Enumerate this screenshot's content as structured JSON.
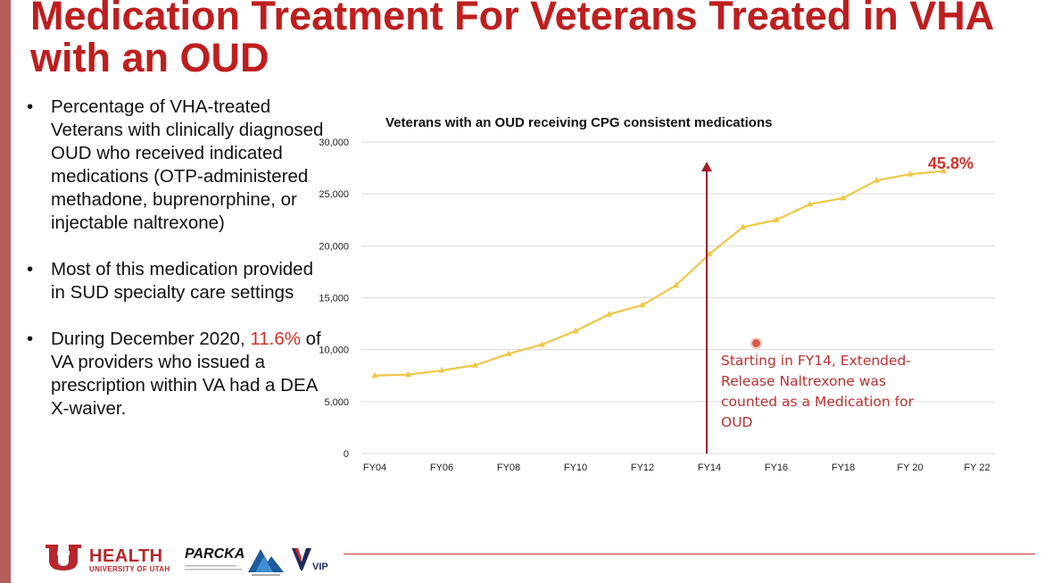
{
  "slide": {
    "title": "Medication Treatment For Veterans Treated in VHA with an OUD",
    "bullets": [
      {
        "text": "Percentage of VHA-treated Veterans with clinically diagnosed OUD who received indicated medications (OTP-administered methadone, buprenorphine, or injectable naltrexone)"
      },
      {
        "text": "Most of this medication provided in SUD specialty care settings"
      },
      {
        "before": "During December 2020, ",
        "highlight": "11.6%",
        "after": " of VA providers who issued a prescription within VA had a DEA X-waiver."
      }
    ],
    "highlight_color": "#d2302a",
    "title_color": "#be1e1e"
  },
  "chart_data": {
    "type": "line",
    "title": "Veterans with an OUD receiving CPG consistent medications",
    "xlabel": "",
    "ylabel": "",
    "x": [
      "FY04",
      "FY05",
      "FY06",
      "FY07",
      "FY08",
      "FY09",
      "FY10",
      "FY11",
      "FY12",
      "FY13",
      "FY14",
      "FY15",
      "FY16",
      "FY17",
      "FY18",
      "FY19",
      "FY 20",
      "FY21"
    ],
    "x_tick_labels": [
      "FY04",
      "FY06",
      "FY08",
      "FY10",
      "FY12",
      "FY14",
      "FY16",
      "FY18",
      "FY 20",
      "FY 22"
    ],
    "y_tick_labels": [
      "0",
      "5,000",
      "10,000",
      "15,000",
      "20,000",
      "25,000",
      "30,000"
    ],
    "ylim": [
      0,
      30000
    ],
    "series": [
      {
        "values": [
          7500,
          7600,
          8000,
          8500,
          9600,
          10500,
          11800,
          13400,
          14300,
          16200,
          19200,
          21800,
          22500,
          24000,
          24600,
          26300,
          26900,
          27200
        ],
        "color": "#f0c648"
      }
    ],
    "grid": true,
    "end_label": "45.8%",
    "end_label_color": "#d2302a",
    "marker_line": {
      "x": "FY14",
      "color": "#a01e2a",
      "annotation": "Starting in FY14, Extended-Release Naltrexone was counted as a Medication for OUD",
      "annotation_color": "#b83232"
    }
  },
  "footer": {
    "health": "HEALTH",
    "university": "UNIVERSITY OF UTAH",
    "parcka": "PARCKA",
    "vip": "VIP"
  }
}
